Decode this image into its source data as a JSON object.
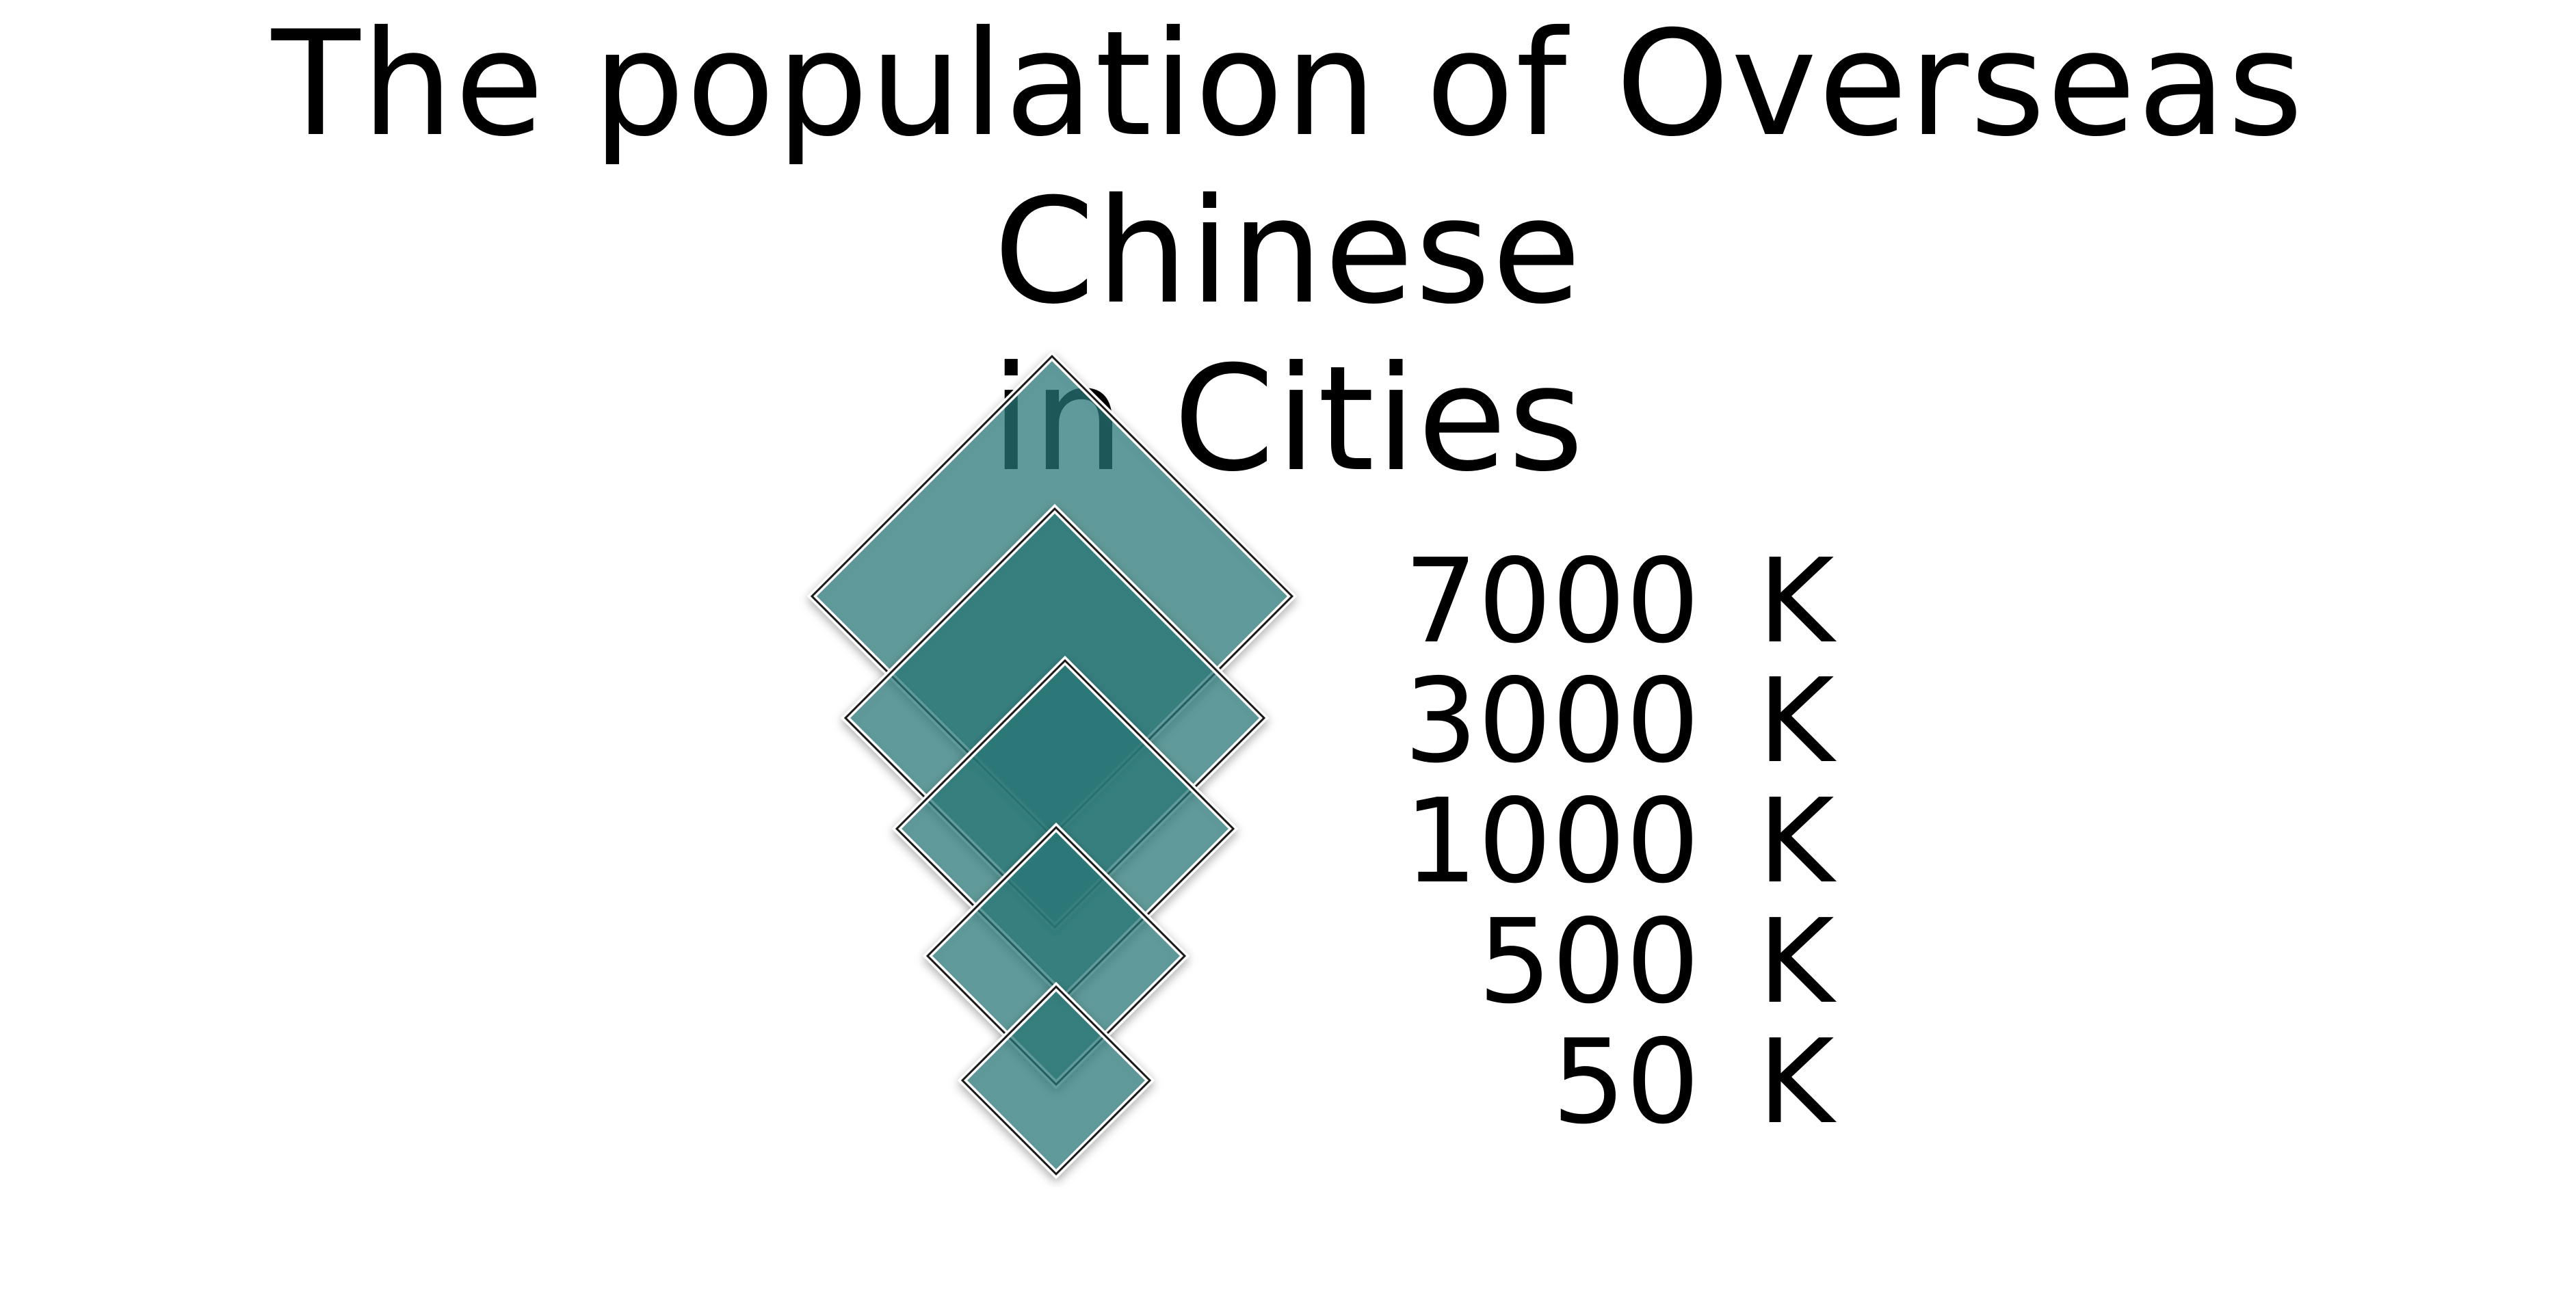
{
  "chart_data": {
    "type": "proportional-symbol-legend",
    "title_lines": [
      "The population of Overseas Chinese",
      "in Cities"
    ],
    "symbol_shape": "diamond",
    "fill_color": "#2c7c7c",
    "outline_color": "#1a1a1a",
    "legend_items": [
      {
        "value": "7000",
        "unit": "K"
      },
      {
        "value": "3000",
        "unit": "K"
      },
      {
        "value": "1000",
        "unit": "K"
      },
      {
        "value": "500",
        "unit": "K"
      },
      {
        "value": "50",
        "unit": "K"
      }
    ]
  }
}
